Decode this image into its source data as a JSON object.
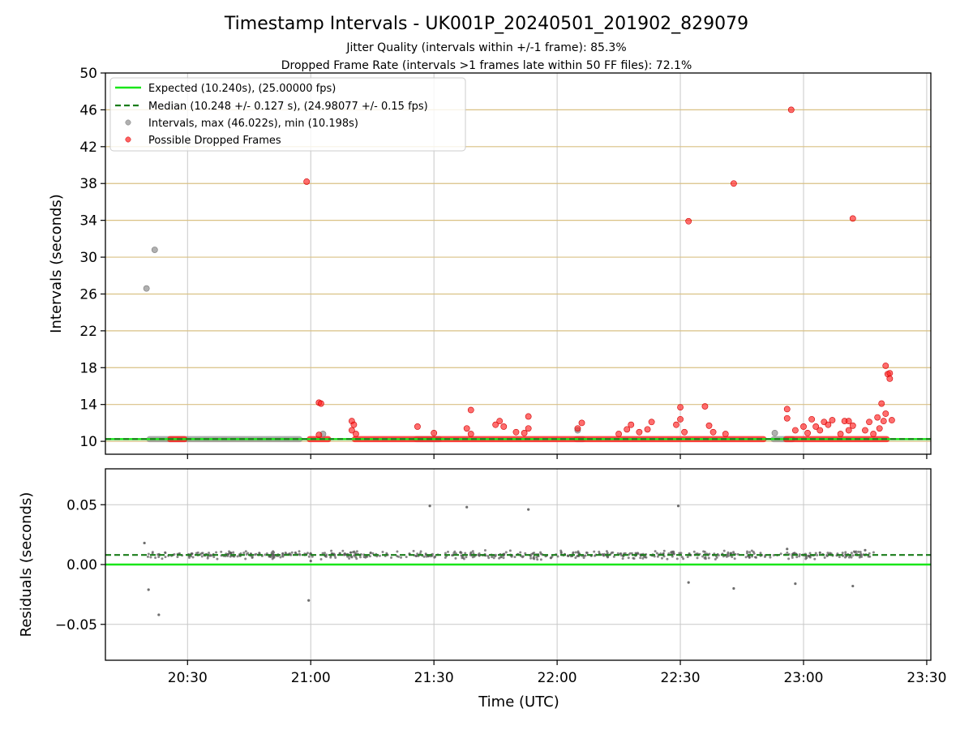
{
  "chart_data": [
    {
      "type": "scatter",
      "panel": "intervals",
      "title": "Timestamp Intervals - UK001P_20240501_201902_829079",
      "subtitles": [
        "Jitter Quality (intervals within +/-1 frame): 85.3%",
        "Dropped Frame Rate (intervals >1 frames late within 50 FF files): 72.1%"
      ],
      "ylabel": "Intervals (seconds)",
      "ylim": [
        8.6,
        50
      ],
      "yticks": [
        10,
        14,
        18,
        22,
        26,
        30,
        34,
        38,
        42,
        46,
        50
      ],
      "xlim": [
        "20:10",
        "23:31"
      ],
      "grid": "horizontal gold lines at y ticks, vertical grey lines at x ticks",
      "legend_placement": "top-left",
      "legend": [
        {
          "label": "Expected (10.240s), (25.00000 fps)",
          "style": "solid-line",
          "color": "#19e619"
        },
        {
          "label": "Median (10.248 +/- 0.127 s), (24.98077 +/- 0.15 fps)",
          "style": "dashed-line",
          "color": "#1b7d1b"
        },
        {
          "label": "Intervals, max (46.022s), min (10.198s)",
          "style": "marker",
          "color": "#8f8f8f"
        },
        {
          "label": "Possible Dropped Frames",
          "style": "marker",
          "color": "#ff2020"
        }
      ],
      "expected_value": 10.24,
      "median_value": 10.248,
      "series": [
        {
          "name": "Intervals, max (46.022s), min (10.198s)",
          "color": "#8f8f8f",
          "bands": [
            [
              "20:20",
              "20:58"
            ],
            [
              "21:25",
              "21:32"
            ],
            [
              "22:04",
              "22:07"
            ],
            [
              "22:52",
              "22:58"
            ]
          ],
          "band_value": 10.24,
          "points": [
            {
              "t": "20:20",
              "v": 26.6
            },
            {
              "t": "20:22",
              "v": 30.8
            },
            {
              "t": "21:03",
              "v": 10.8
            },
            {
              "t": "22:05",
              "v": 11.2
            },
            {
              "t": "22:53",
              "v": 10.9
            }
          ]
        },
        {
          "name": "Possible Dropped Frames",
          "color": "#ff2020",
          "bands": [
            [
              "20:25",
              "20:30"
            ],
            [
              "20:59",
              "21:05"
            ],
            [
              "21:10",
              "22:51"
            ],
            [
              "22:55",
              "23:21"
            ]
          ],
          "band_value": 10.24,
          "points": [
            {
              "t": "20:59",
              "v": 38.2
            },
            {
              "t": "21:02",
              "v": 14.2
            },
            {
              "t": "21:02.5",
              "v": 14.1
            },
            {
              "t": "21:02",
              "v": 10.7
            },
            {
              "t": "21:10",
              "v": 12.2
            },
            {
              "t": "21:10.5",
              "v": 11.8
            },
            {
              "t": "21:10",
              "v": 11.2
            },
            {
              "t": "21:11",
              "v": 10.8
            },
            {
              "t": "21:26",
              "v": 11.6
            },
            {
              "t": "21:30",
              "v": 10.9
            },
            {
              "t": "21:38",
              "v": 11.4
            },
            {
              "t": "21:39",
              "v": 13.4
            },
            {
              "t": "21:39",
              "v": 10.8
            },
            {
              "t": "21:45",
              "v": 11.8
            },
            {
              "t": "21:46",
              "v": 12.2
            },
            {
              "t": "21:47",
              "v": 11.6
            },
            {
              "t": "21:50",
              "v": 11.0
            },
            {
              "t": "21:52",
              "v": 10.9
            },
            {
              "t": "21:53",
              "v": 12.7
            },
            {
              "t": "21:53",
              "v": 11.4
            },
            {
              "t": "22:05",
              "v": 11.4
            },
            {
              "t": "22:06",
              "v": 12.0
            },
            {
              "t": "22:15",
              "v": 10.8
            },
            {
              "t": "22:17",
              "v": 11.3
            },
            {
              "t": "22:18",
              "v": 11.8
            },
            {
              "t": "22:20",
              "v": 11.0
            },
            {
              "t": "22:22",
              "v": 11.3
            },
            {
              "t": "22:23",
              "v": 12.1
            },
            {
              "t": "22:30",
              "v": 13.7
            },
            {
              "t": "22:30",
              "v": 12.4
            },
            {
              "t": "22:29",
              "v": 11.8
            },
            {
              "t": "22:31",
              "v": 11.0
            },
            {
              "t": "22:32",
              "v": 33.9
            },
            {
              "t": "22:36",
              "v": 13.8
            },
            {
              "t": "22:37",
              "v": 11.7
            },
            {
              "t": "22:38",
              "v": 11.0
            },
            {
              "t": "22:41",
              "v": 10.8
            },
            {
              "t": "22:43",
              "v": 38.0
            },
            {
              "t": "22:56",
              "v": 13.5
            },
            {
              "t": "22:56",
              "v": 12.5
            },
            {
              "t": "22:57",
              "v": 46.0
            },
            {
              "t": "22:58",
              "v": 11.2
            },
            {
              "t": "23:00",
              "v": 11.6
            },
            {
              "t": "23:01",
              "v": 10.9
            },
            {
              "t": "23:02",
              "v": 12.4
            },
            {
              "t": "23:03",
              "v": 11.6
            },
            {
              "t": "23:04",
              "v": 11.2
            },
            {
              "t": "23:05",
              "v": 12.1
            },
            {
              "t": "23:06",
              "v": 11.8
            },
            {
              "t": "23:07",
              "v": 12.3
            },
            {
              "t": "23:09",
              "v": 10.8
            },
            {
              "t": "23:10",
              "v": 12.2
            },
            {
              "t": "23:11",
              "v": 12.2
            },
            {
              "t": "23:12",
              "v": 11.7
            },
            {
              "t": "23:11",
              "v": 11.2
            },
            {
              "t": "23:12",
              "v": 34.2
            },
            {
              "t": "23:15",
              "v": 11.2
            },
            {
              "t": "23:16",
              "v": 12.1
            },
            {
              "t": "23:17",
              "v": 10.8
            },
            {
              "t": "23:18",
              "v": 12.6
            },
            {
              "t": "23:18.5",
              "v": 11.4
            },
            {
              "t": "23:19",
              "v": 14.1
            },
            {
              "t": "23:19.5",
              "v": 12.2
            },
            {
              "t": "23:20",
              "v": 18.2
            },
            {
              "t": "23:20",
              "v": 13.0
            },
            {
              "t": "23:20.5",
              "v": 17.3
            },
            {
              "t": "23:21",
              "v": 17.4
            },
            {
              "t": "23:21",
              "v": 16.8
            },
            {
              "t": "23:21.5",
              "v": 12.3
            }
          ]
        }
      ]
    },
    {
      "type": "scatter",
      "panel": "residuals",
      "ylabel": "Residuals (seconds)",
      "xlabel": "Time (UTC)",
      "ylim": [
        -0.08,
        0.08
      ],
      "yticks": [
        {
          "v": -0.05,
          "label": "−0.05"
        },
        {
          "v": 0.0,
          "label": "0.00"
        },
        {
          "v": 0.05,
          "label": "0.05"
        }
      ],
      "xticks": [
        "20:30",
        "21:00",
        "21:30",
        "22:00",
        "22:30",
        "23:00",
        "23:30"
      ],
      "xlim": [
        "20:10",
        "23:31"
      ],
      "expected_value": 0.0,
      "median_value": 0.008,
      "dense_band": {
        "start": "20:20",
        "end": "23:18",
        "center": 0.008,
        "spread": 0.003
      },
      "series": [
        {
          "name": "Residuals",
          "color": "#6e6e6e",
          "points": [
            {
              "t": "20:19.5",
              "v": 0.018
            },
            {
              "t": "20:20.5",
              "v": -0.021
            },
            {
              "t": "20:23",
              "v": -0.042
            },
            {
              "t": "20:31",
              "v": 0.009
            },
            {
              "t": "20:50",
              "v": 0.007
            },
            {
              "t": "21:00",
              "v": 0.003
            },
            {
              "t": "20:59.5",
              "v": -0.03
            },
            {
              "t": "21:29",
              "v": 0.049
            },
            {
              "t": "21:38",
              "v": 0.048
            },
            {
              "t": "21:53",
              "v": 0.046
            },
            {
              "t": "22:29.5",
              "v": 0.049
            },
            {
              "t": "22:32",
              "v": -0.015
            },
            {
              "t": "22:43",
              "v": -0.02
            },
            {
              "t": "22:58",
              "v": -0.016
            },
            {
              "t": "23:12",
              "v": -0.018
            },
            {
              "t": "23:15",
              "v": 0.012
            },
            {
              "t": "22:56",
              "v": 0.013
            }
          ]
        }
      ]
    }
  ]
}
